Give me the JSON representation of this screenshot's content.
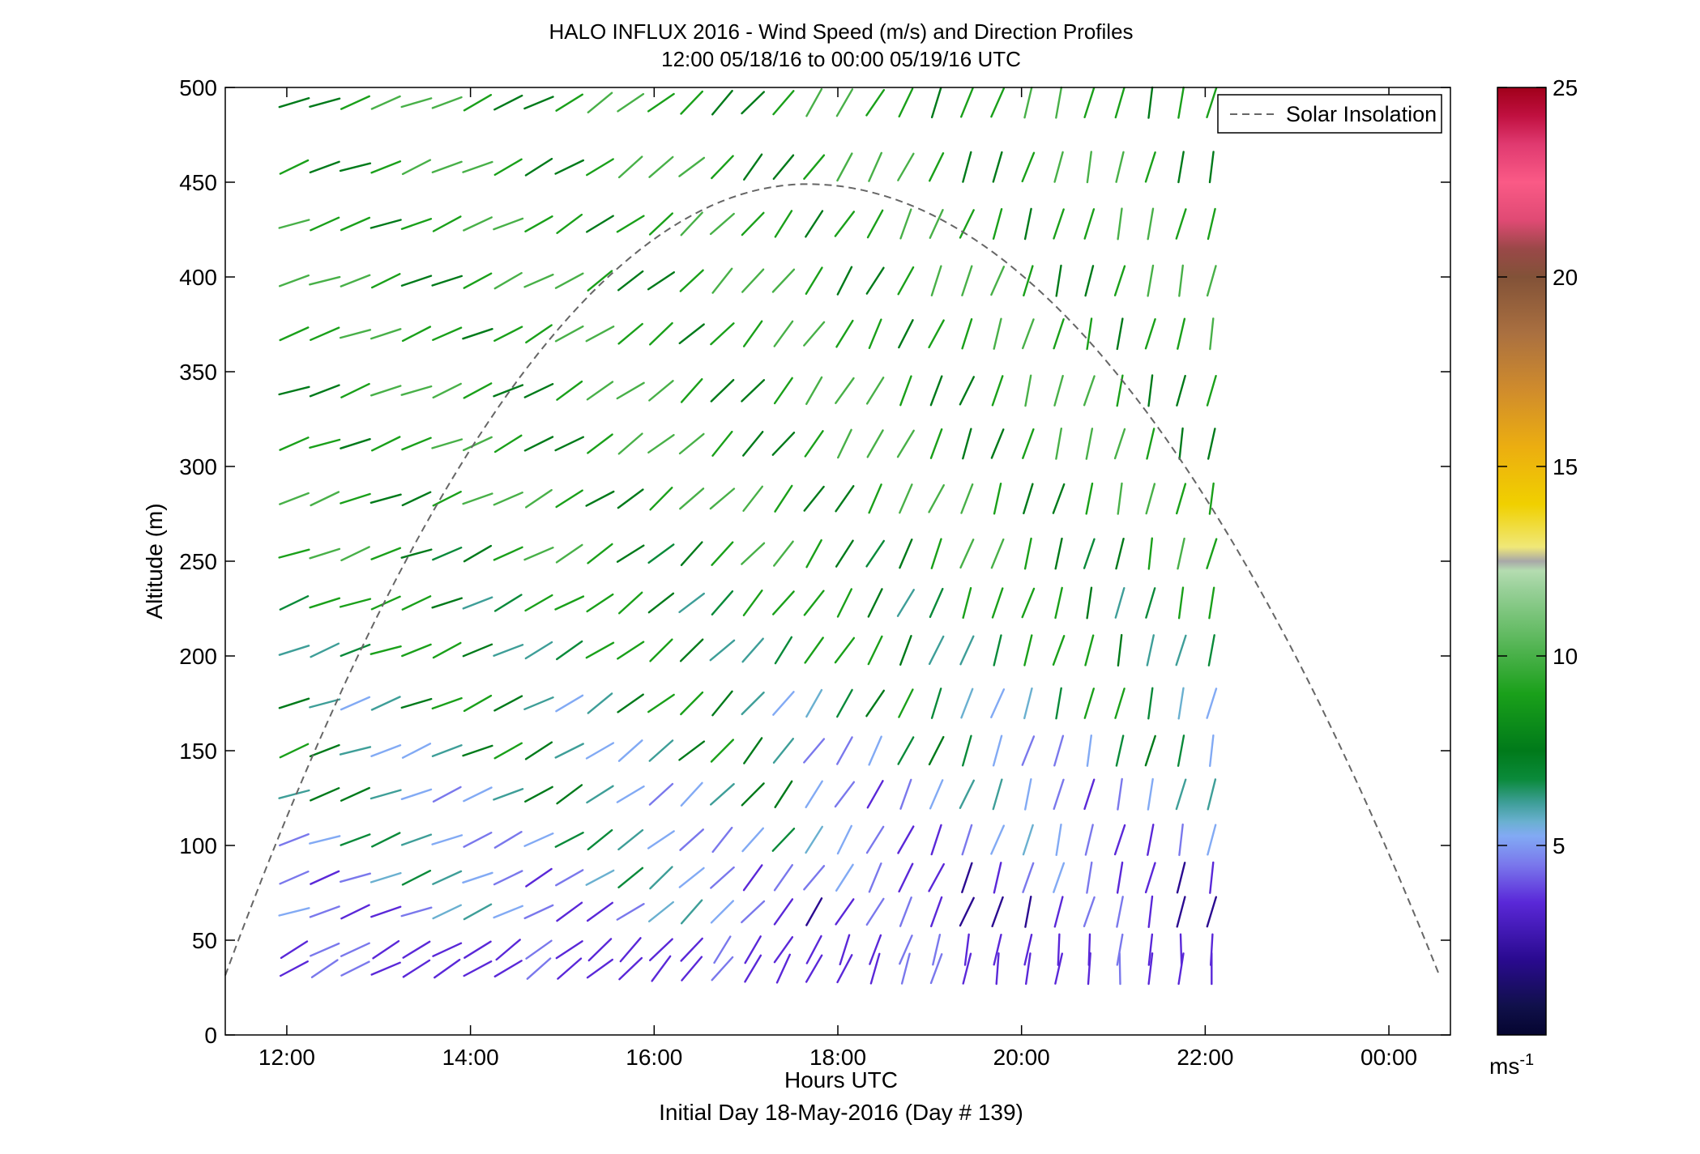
{
  "chart_data": {
    "type": "wind-barb profile",
    "title": "HALO INFLUX 2016 - Wind Speed (m/s) and Direction Profiles",
    "subtitle": "12:00 05/18/16 to 00:00 05/19/16  UTC",
    "xlabel": "Hours UTC",
    "xlabel_sub": "Initial Day 18-May-2016 (Day # 139)",
    "ylabel": "Altitude (m)",
    "x_tick_labels": [
      "12:00",
      "14:00",
      "16:00",
      "18:00",
      "20:00",
      "22:00",
      "00:00"
    ],
    "x_tick_hours": [
      12,
      14,
      16,
      18,
      20,
      22,
      24
    ],
    "xlim": [
      11.33,
      24.67
    ],
    "y_ticks": [
      0,
      50,
      100,
      150,
      200,
      250,
      300,
      350,
      400,
      450,
      500
    ],
    "ylim": [
      0,
      500
    ],
    "colorbar": {
      "ticks": [
        5,
        10,
        15,
        20,
        25
      ],
      "range": [
        0,
        25
      ],
      "unit": "ms",
      "unit_exp": "-1"
    },
    "legend": {
      "label": "Solar Insolation",
      "placement": "top-right"
    },
    "solar_insolation": {
      "x_start": 11.33,
      "peak_hour": 17.67,
      "peak_altitude": 449,
      "x_end": 24.55
    },
    "wind_grid": {
      "times_start": 12.08,
      "time_step": 0.333,
      "time_count": 31,
      "altitudes": [
        35,
        45,
        65,
        83,
        103,
        127,
        150,
        175,
        203,
        228,
        254,
        283,
        312,
        340,
        370,
        398,
        428,
        458,
        492
      ]
    }
  }
}
